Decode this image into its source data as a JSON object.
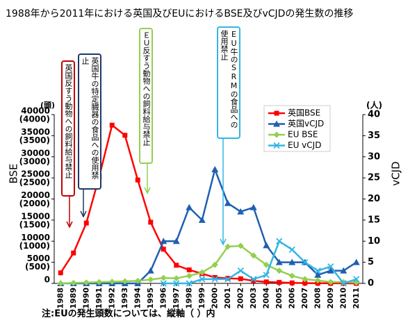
{
  "chart_data": {
    "type": "line",
    "title": "1988年から2011年における英国及びEUにおけるBSE及びvCJDの発生数の推移",
    "note": "注:EUの発生頭数については、縦軸（ ）内",
    "y_label": "BSE",
    "y2_label": "vCJD",
    "y_unit": "(頭)",
    "y2_unit": "(人)",
    "categories": [
      "1988",
      "1989",
      "1990",
      "1991",
      "1992",
      "1993",
      "1994",
      "1995",
      "1996",
      "1997",
      "1998",
      "1999",
      "2000",
      "2001",
      "2002",
      "2003",
      "2004",
      "2005",
      "2006",
      "2007",
      "2008",
      "2009",
      "2010",
      "2011"
    ],
    "ylim": [
      0,
      40000
    ],
    "yticks": [
      0,
      5000,
      10000,
      15000,
      20000,
      25000,
      30000,
      35000,
      40000
    ],
    "y_eu_lim": [
      0,
      4000
    ],
    "y_eu_ticks": [
      {
        "value": 500,
        "label": "(500)"
      },
      {
        "value": 1000,
        "label": "(1000)"
      },
      {
        "value": 1500,
        "label": "(1500)"
      },
      {
        "value": 2000,
        "label": "(2000)"
      },
      {
        "value": 2500,
        "label": "(2500)"
      },
      {
        "value": 3000,
        "label": "(3000)"
      },
      {
        "value": 3500,
        "label": "(3500)"
      },
      {
        "value": 4000,
        "label": "(4000)"
      }
    ],
    "y2lim": [
      0,
      40
    ],
    "y2ticks": [
      0,
      5,
      10,
      15,
      20,
      25,
      30,
      35,
      40
    ],
    "legend": "top-right",
    "series": [
      {
        "name": "英国BSE",
        "color": "#ff0000",
        "marker": "square",
        "values": [
          2500,
          7200,
          14300,
          25300,
          37500,
          35100,
          24500,
          14500,
          8100,
          4300,
          3200,
          2300,
          1400,
          1200,
          1100,
          600,
          343,
          225,
          114,
          67,
          37,
          12,
          11,
          7
        ]
      },
      {
        "name": "英国vCJD",
        "color": "#1f5fb0",
        "marker": "triangle",
        "axis": "y2",
        "values": [
          0,
          0,
          0,
          0,
          0,
          0,
          0,
          3,
          10,
          10,
          18,
          15,
          27,
          19,
          17,
          18,
          9,
          5,
          5,
          5,
          2,
          3,
          3,
          5
        ]
      },
      {
        "name": "EU BSE",
        "color": "#92d050",
        "marker": "diamond",
        "axis": "y_eu",
        "values": [
          0,
          10,
          20,
          30,
          40,
          50,
          60,
          90,
          130,
          120,
          180,
          260,
          440,
          870,
          890,
          660,
          440,
          300,
          180,
          100,
          70,
          30,
          30,
          20
        ]
      },
      {
        "name": "EU vCJD",
        "color": "#33b5e5",
        "marker": "x",
        "axis": "y2",
        "values": [
          null,
          null,
          null,
          null,
          null,
          null,
          null,
          null,
          0,
          0,
          0,
          1,
          1,
          1,
          3,
          1,
          2,
          10,
          8,
          5,
          3,
          4,
          0,
          1
        ]
      }
    ],
    "annotations": [
      {
        "text": "英国反すう動物への飼料給与禁止",
        "color": "#c00000"
      },
      {
        "text": "英国牛の特定臓器の食品への使用禁止",
        "color": "#1f3864"
      },
      {
        "text": "ＥＵ反すう動物への飼料給与禁止",
        "color": "#92d050"
      },
      {
        "text": "EU牛のSRMの食品への使用禁止",
        "color": "#33b5e5"
      }
    ]
  }
}
